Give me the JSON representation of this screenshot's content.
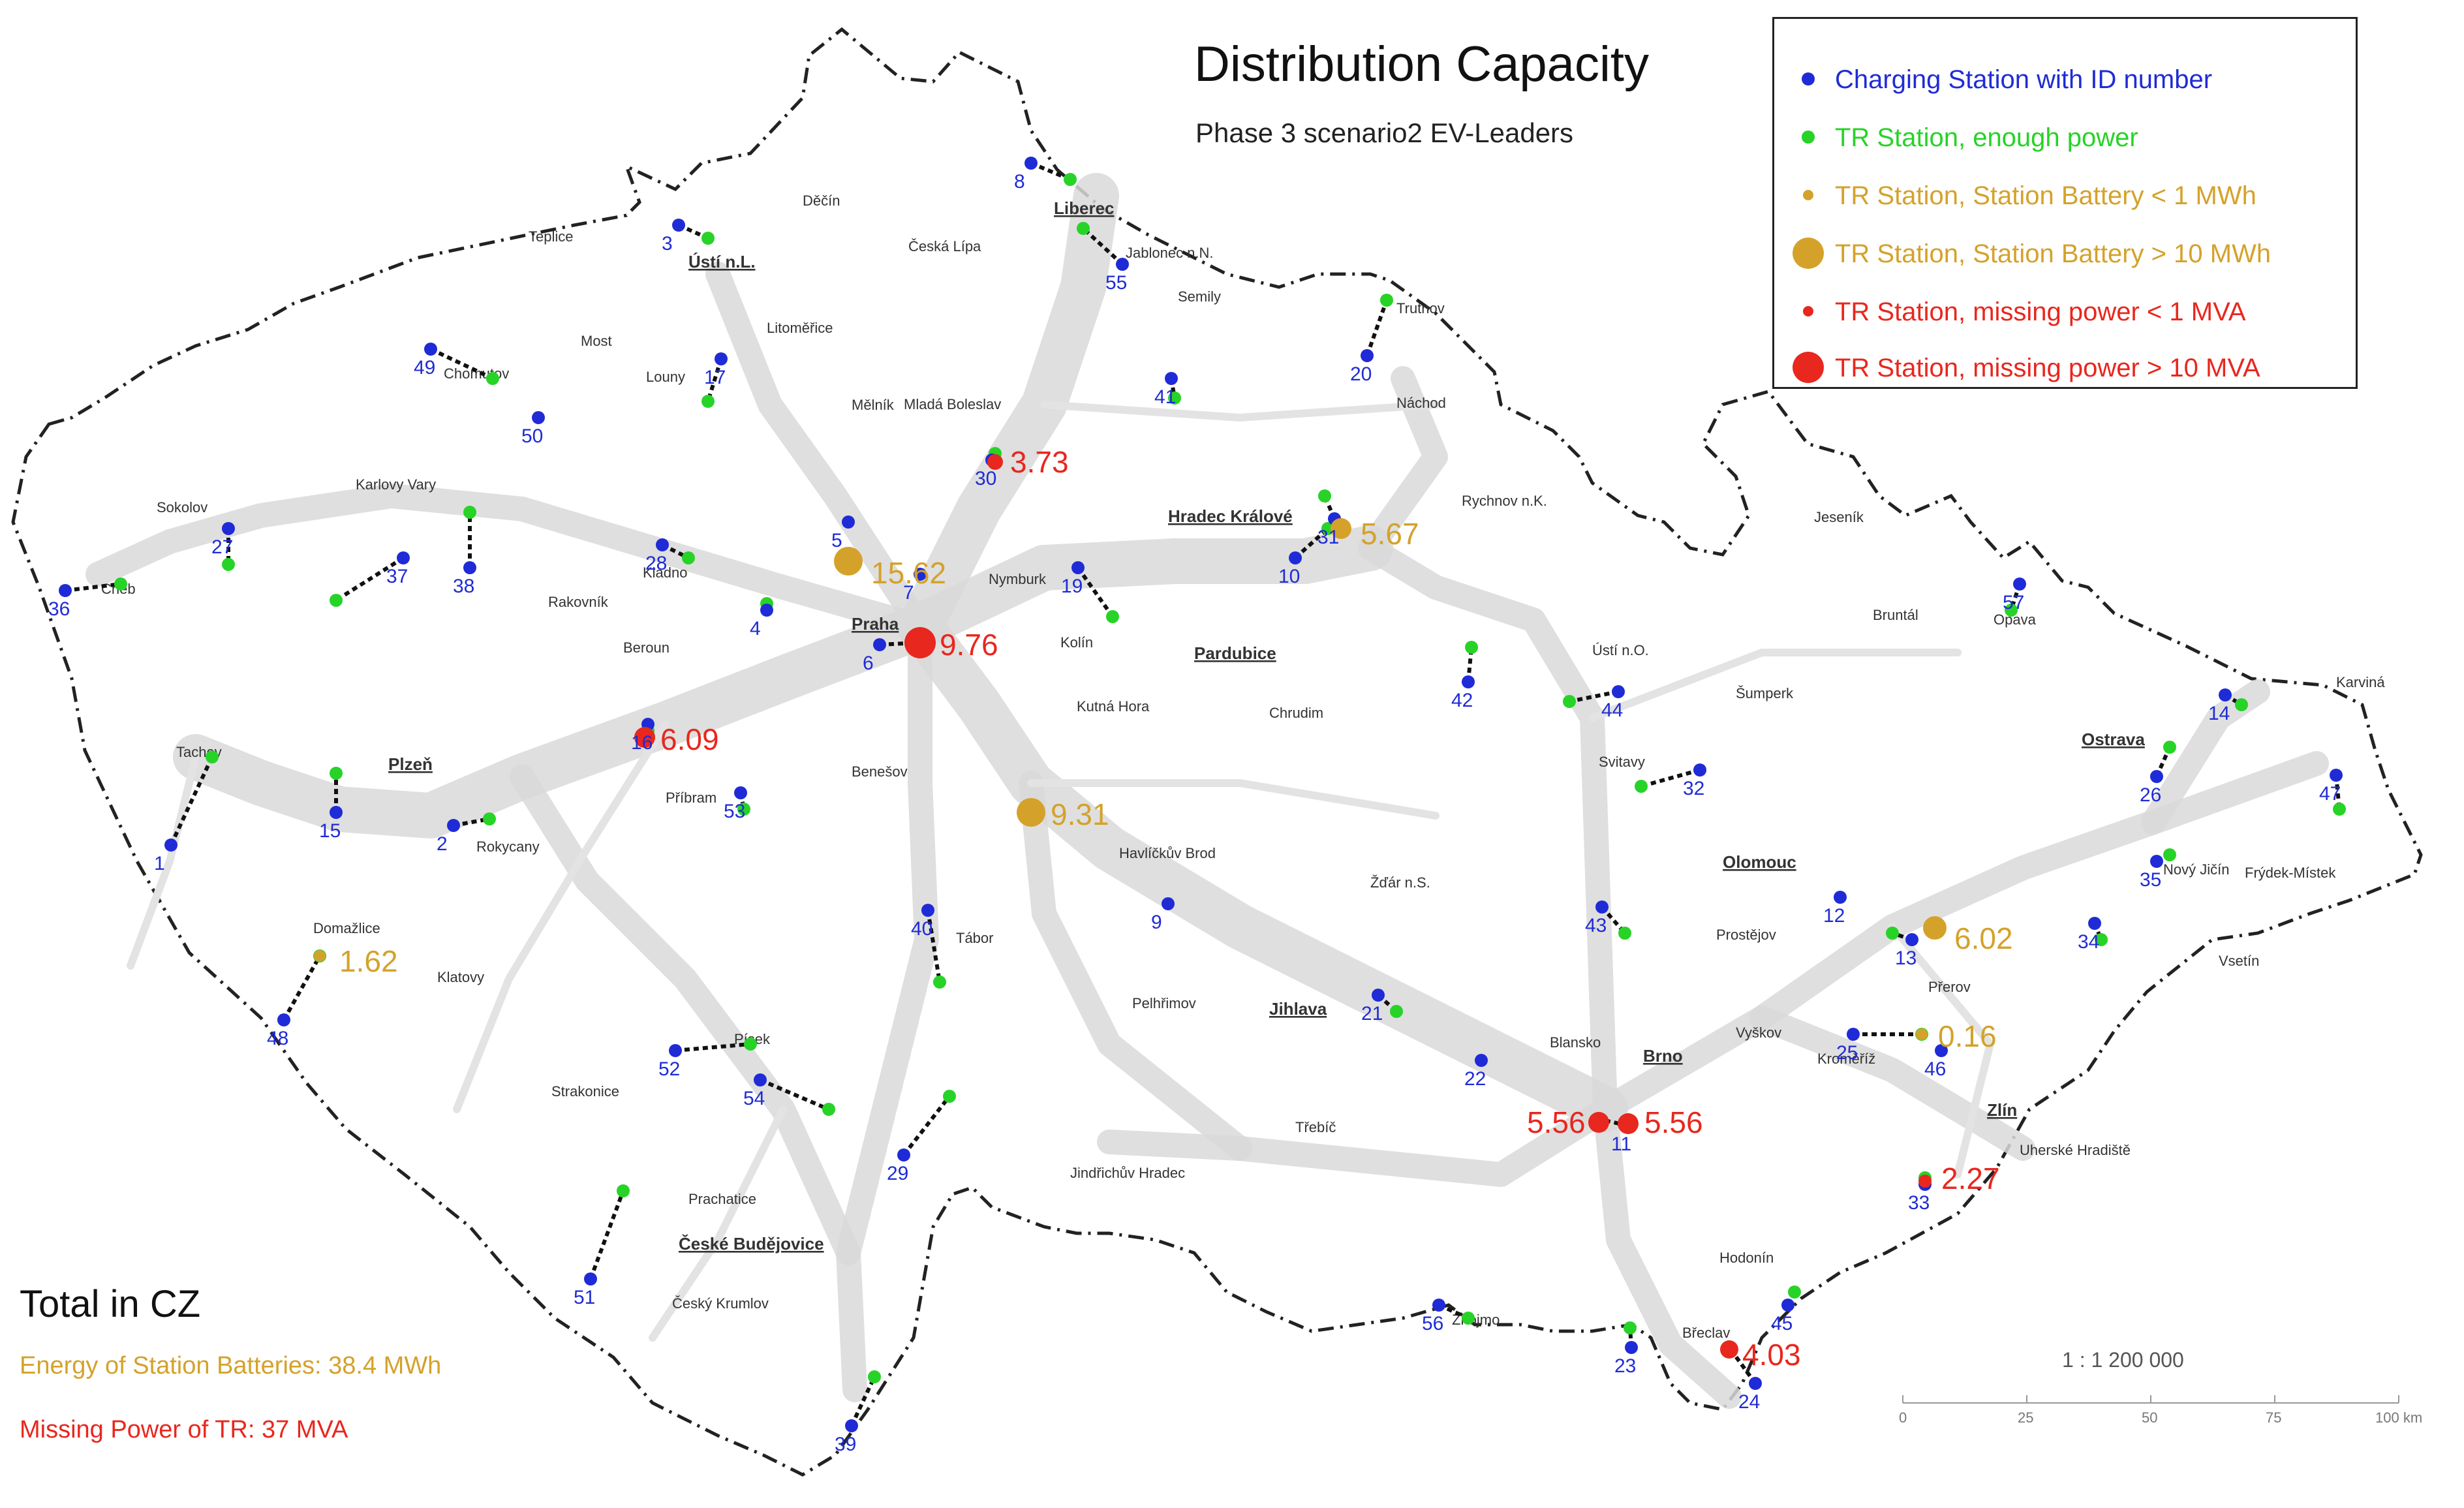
{
  "title": "Distribution Capacity",
  "subtitle": "Phase 3 scenario2 EV-Leaders",
  "legend": [
    {
      "label": "Charging Station with ID number",
      "color": "#1f2bd6",
      "symbol": "small-dot"
    },
    {
      "label": "TR Station, enough power",
      "color": "#27d327",
      "symbol": "small-dot"
    },
    {
      "label": "TR Station, Station Battery < 1 MWh",
      "color": "#d4a22b",
      "symbol": "small-dot"
    },
    {
      "label": "TR Station, Station Battery > 10 MWh",
      "color": "#d4a22b",
      "symbol": "large-dot"
    },
    {
      "label": "TR Station, missing power < 1 MVA",
      "color": "#e8271e",
      "symbol": "small-dot"
    },
    {
      "label": "TR Station, missing power > 10 MVA",
      "color": "#e8271e",
      "symbol": "large-dot"
    }
  ],
  "totals": {
    "heading": "Total in CZ",
    "energy": "Energy of Station Batteries: 38.4 MWh",
    "power": "Missing Power of TR: 37 MVA"
  },
  "scale": {
    "text": "1 : 1 200 000",
    "ticks": [
      "0",
      "25",
      "50",
      "75",
      "100 km"
    ]
  },
  "colors": {
    "charging": "#1f2bd6",
    "enough": "#27d327",
    "battery": "#d4a22b",
    "missing": "#e8271e",
    "road": "#d9d9d9",
    "border": "#222222",
    "city": "#333333"
  },
  "map": {
    "cities": [
      "Praha",
      "Brno",
      "Ostrava",
      "Plzeň",
      "Liberec",
      "Ústí n.L.",
      "Hradec Králové",
      "Pardubice",
      "Olomouc",
      "Zlín",
      "Jihlava",
      "České Budějovice",
      "Karlovy Vary",
      "Děčín",
      "Česká Lípa",
      "Teplice",
      "Most",
      "Chomutov",
      "Louny",
      "Litoměřice",
      "Mělník",
      "Mladá Boleslav",
      "Jablonec n.N.",
      "Semily",
      "Trutnov",
      "Náchod",
      "Rychnov n.K.",
      "Jeseník",
      "Bruntál",
      "Opava",
      "Karviná",
      "Frýdek-Místek",
      "Nový Jičín",
      "Vsetín",
      "Přerov",
      "Kroměříž",
      "Vyškov",
      "Prostějov",
      "Šumperk",
      "Svitavy",
      "Ústí n.O.",
      "Chrudim",
      "Kutná Hora",
      "Kolín",
      "Nymburk",
      "Benešov",
      "Beroun",
      "Kladno",
      "Rakovník",
      "Rokycany",
      "Příbram",
      "Sokolov",
      "Cheb",
      "Tachov",
      "Domažlice",
      "Klatovy",
      "Strakonice",
      "Písek",
      "Tábor",
      "Pelhřimov",
      "Havlíčkův Brod",
      "Žďár n.S.",
      "Třebíč",
      "Jindřichův Hradec",
      "Prachatice",
      "Český Krumlov",
      "Znojmo",
      "Břeclav",
      "Hodonín",
      "Uherské Hradiště",
      "Blansko"
    ],
    "charging_stations": [
      {
        "id": "1"
      },
      {
        "id": "2"
      },
      {
        "id": "3"
      },
      {
        "id": "4"
      },
      {
        "id": "5"
      },
      {
        "id": "6"
      },
      {
        "id": "7"
      },
      {
        "id": "8"
      },
      {
        "id": "9"
      },
      {
        "id": "10"
      },
      {
        "id": "11"
      },
      {
        "id": "12"
      },
      {
        "id": "13"
      },
      {
        "id": "14"
      },
      {
        "id": "15"
      },
      {
        "id": "16"
      },
      {
        "id": "17"
      },
      {
        "id": "19"
      },
      {
        "id": "20"
      },
      {
        "id": "21"
      },
      {
        "id": "22"
      },
      {
        "id": "23"
      },
      {
        "id": "24"
      },
      {
        "id": "25"
      },
      {
        "id": "26"
      },
      {
        "id": "27"
      },
      {
        "id": "28"
      },
      {
        "id": "29"
      },
      {
        "id": "30"
      },
      {
        "id": "31"
      },
      {
        "id": "32"
      },
      {
        "id": "33"
      },
      {
        "id": "34"
      },
      {
        "id": "35"
      },
      {
        "id": "36"
      },
      {
        "id": "37"
      },
      {
        "id": "38"
      },
      {
        "id": "39"
      },
      {
        "id": "40"
      },
      {
        "id": "41"
      },
      {
        "id": "42"
      },
      {
        "id": "43"
      },
      {
        "id": "44"
      },
      {
        "id": "45"
      },
      {
        "id": "46"
      },
      {
        "id": "47"
      },
      {
        "id": "48"
      },
      {
        "id": "49"
      },
      {
        "id": "50"
      },
      {
        "id": "51"
      },
      {
        "id": "52"
      },
      {
        "id": "53"
      },
      {
        "id": "54"
      },
      {
        "id": "55"
      },
      {
        "id": "56"
      },
      {
        "id": "57"
      }
    ],
    "tr_values": [
      {
        "value": "15.62",
        "status": "battery"
      },
      {
        "value": "9.31",
        "status": "battery"
      },
      {
        "value": "5.67",
        "status": "battery"
      },
      {
        "value": "6.02",
        "status": "battery"
      },
      {
        "value": "1.62",
        "status": "battery"
      },
      {
        "value": "0.16",
        "status": "battery"
      },
      {
        "value": "9.76",
        "status": "missing"
      },
      {
        "value": "6.09",
        "status": "missing"
      },
      {
        "value": "3.73",
        "status": "missing"
      },
      {
        "value": "5.56",
        "status": "missing"
      },
      {
        "value": "5.56",
        "status": "missing"
      },
      {
        "value": "2.27",
        "status": "missing"
      },
      {
        "value": "4.03",
        "status": "missing"
      }
    ]
  }
}
